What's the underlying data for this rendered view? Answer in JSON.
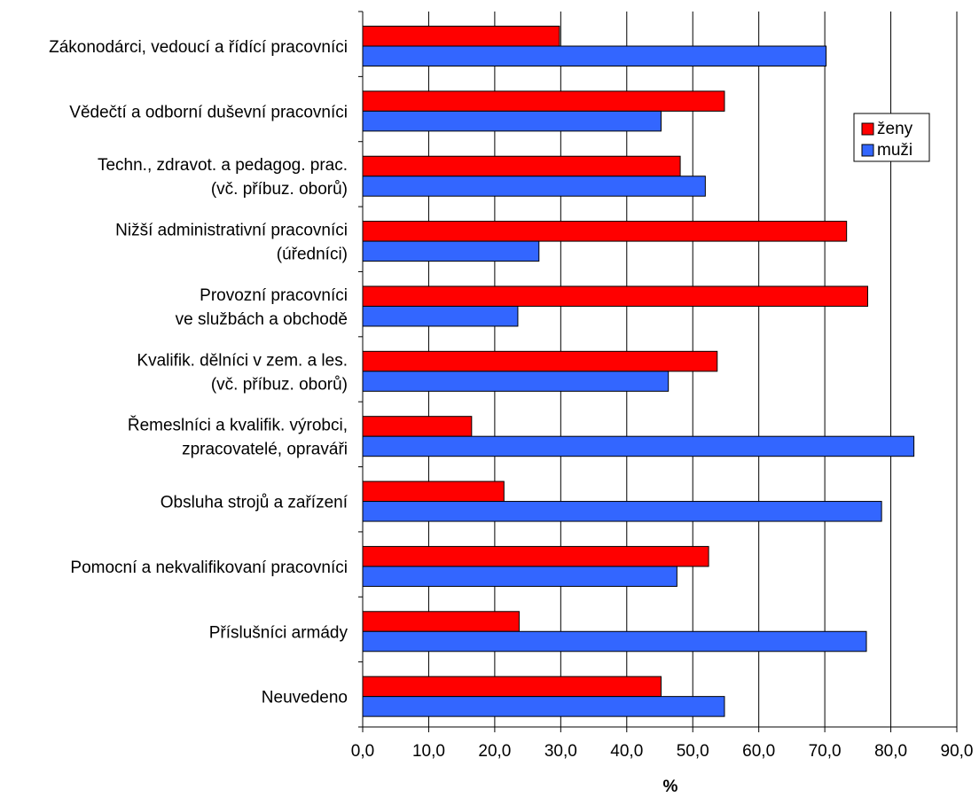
{
  "chart_data": {
    "type": "bar",
    "orientation": "horizontal",
    "categories": [
      [
        "Zákonodárci, vedoucí a řídící pracovníci"
      ],
      [
        "Vědečtí a odborní duševní pracovníci"
      ],
      [
        "Techn., zdravot. a pedagog. prac.",
        "(vč. příbuz. oborů)"
      ],
      [
        "Nižší administrativní pracovníci",
        "(úředníci)"
      ],
      [
        "Provozní pracovníci",
        "ve službách a obchodě"
      ],
      [
        "Kvalifik. dělníci v zem. a les.",
        "(vč. příbuz. oborů)"
      ],
      [
        "Řemeslníci a kvalifik. výrobci,",
        "zpracovatelé, opraváři"
      ],
      [
        "Obsluha strojů a zařízení"
      ],
      [
        "Pomocní a nekvalifikovaní pracovníci"
      ],
      [
        "Příslušníci armády"
      ],
      [
        "Neuvedeno"
      ]
    ],
    "series": [
      {
        "name": "ženy",
        "color": "#ff0000",
        "values": [
          29.8,
          54.8,
          48.1,
          73.3,
          76.5,
          53.7,
          16.5,
          21.4,
          52.4,
          23.7,
          45.2
        ]
      },
      {
        "name": "muži",
        "color": "#3366ff",
        "values": [
          70.2,
          45.2,
          51.9,
          26.7,
          23.5,
          46.3,
          83.5,
          78.6,
          47.6,
          76.3,
          54.8
        ]
      }
    ],
    "xlabel": "%",
    "xlim": [
      0,
      90
    ],
    "x_ticks": [
      "0,0",
      "10,0",
      "20,0",
      "30,0",
      "40,0",
      "50,0",
      "60,0",
      "70,0",
      "80,0",
      "90,0"
    ],
    "grid": "vertical",
    "legend": {
      "position": "right",
      "entries": [
        "ženy",
        "muži"
      ]
    }
  }
}
